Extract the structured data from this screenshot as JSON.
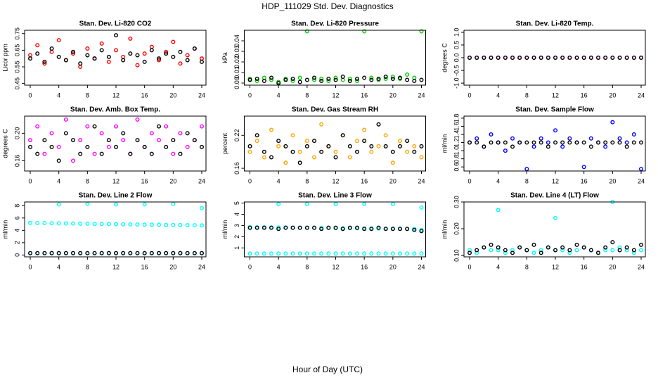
{
  "title": "HDP_111029  Std. Dev. Diagnostics",
  "xlabel": "Hour of Day (UTC)",
  "chart_data": [
    {
      "type": "scatter",
      "title": "Stan. Dev. Li-820 CO2",
      "ylabel": "Licor ppm",
      "x": [
        0,
        1,
        2,
        3,
        4,
        5,
        6,
        7,
        8,
        9,
        10,
        11,
        12,
        13,
        14,
        15,
        16,
        17,
        18,
        19,
        20,
        21,
        22,
        23,
        24
      ],
      "xlim": [
        -0.79,
        24.59
      ],
      "xticks": [
        0,
        4,
        8,
        12,
        16,
        20,
        24
      ],
      "ylim": [
        0.44,
        0.77
      ],
      "yticks": [
        0.45,
        0.55,
        0.65,
        0.75
      ],
      "series": [
        {
          "color": "#ff0000",
          "values": [
            0.62,
            0.68,
            0.57,
            0.64,
            0.71,
            0.59,
            0.63,
            0.55,
            0.66,
            0.6,
            0.69,
            0.58,
            0.65,
            0.61,
            0.72,
            0.56,
            0.63,
            0.67,
            0.59,
            0.64,
            0.7,
            0.57,
            0.62,
            0.66,
            0.6
          ]
        },
        {
          "color": "#000000",
          "values": [
            0.6,
            0.63,
            0.58,
            0.66,
            0.61,
            0.59,
            0.64,
            0.57,
            0.62,
            0.6,
            0.65,
            0.61,
            0.74,
            0.59,
            0.63,
            0.62,
            0.58,
            0.65,
            0.6,
            0.63,
            0.61,
            0.64,
            0.59,
            0.66,
            0.58
          ]
        }
      ]
    },
    {
      "type": "scatter",
      "title": "Stan. Dev. Li-820 Pressure",
      "ylabel": "kPa",
      "x": [
        0,
        1,
        2,
        3,
        4,
        5,
        6,
        7,
        8,
        9,
        10,
        11,
        12,
        13,
        14,
        15,
        16,
        17,
        18,
        19,
        20,
        21,
        22,
        23,
        24
      ],
      "xlim": [
        -0.79,
        24.59
      ],
      "xticks": [
        0,
        4,
        8,
        12,
        16,
        20,
        24
      ],
      "ylim": [
        -0.002,
        0.05
      ],
      "yticks": [
        {
          "value": 0,
          "label": "0.00"
        },
        0.01,
        0.02,
        0.03,
        0.04
      ],
      "series": [
        {
          "color": "#00cc00",
          "values": [
            0.004,
            0.002,
            0.005,
            0.003,
            0.001,
            0.004,
            0.002,
            0.005,
            0.049,
            0.003,
            0.004,
            0.002,
            0.005,
            0.003,
            0.004,
            0.002,
            0.049,
            0.005,
            0.003,
            0.004,
            0.006,
            0.004,
            0.008,
            0.005,
            0.049
          ]
        },
        {
          "color": "#000000",
          "values": [
            0.003,
            0.004,
            0.002,
            0.005,
            0.0,
            0.003,
            0.004,
            0.001,
            0.003,
            0.005,
            0.002,
            0.004,
            0.003,
            0.006,
            0.002,
            0.004,
            0.005,
            0.003,
            0.004,
            0.006,
            0.004,
            0.005,
            0.003,
            0.002,
            0.003
          ]
        }
      ]
    },
    {
      "type": "scatter",
      "title": "Stan. Dev. Li-820 Temp.",
      "ylabel": "degrees C",
      "x": [
        0,
        1,
        2,
        3,
        4,
        5,
        6,
        7,
        8,
        9,
        10,
        11,
        12,
        13,
        14,
        15,
        16,
        17,
        18,
        19,
        20,
        21,
        22,
        23,
        24
      ],
      "xlim": [
        -0.79,
        24.59
      ],
      "xticks": [
        0,
        4,
        8,
        12,
        16,
        20,
        24
      ],
      "ylim": [
        -1.08,
        1.08
      ],
      "yticks": [
        {
          "value": -1,
          "label": "-1.0"
        },
        -0.5,
        {
          "value": 0,
          "label": "0.0"
        },
        0.5,
        {
          "value": 1,
          "label": "1.0"
        }
      ],
      "series": [
        {
          "color": "#ff00ff",
          "values": [
            0,
            0,
            0,
            0,
            0,
            0,
            0,
            0,
            0,
            0,
            0,
            0,
            0,
            0,
            0,
            0,
            0,
            0,
            0,
            0,
            0,
            0,
            0,
            0,
            0
          ]
        },
        {
          "color": "#000000",
          "values": [
            0,
            0,
            0,
            0,
            0,
            0,
            0,
            0,
            0,
            0,
            0,
            0,
            0,
            0,
            0,
            0,
            0,
            0,
            0,
            0,
            0,
            0,
            0,
            0,
            0
          ]
        }
      ]
    },
    {
      "type": "scatter",
      "title": "Stan. Dev. Amb. Box Temp.",
      "ylabel": "degrees C",
      "x": [
        0,
        1,
        2,
        3,
        4,
        5,
        6,
        7,
        8,
        9,
        10,
        11,
        12,
        13,
        14,
        15,
        16,
        17,
        18,
        19,
        20,
        21,
        22,
        23,
        24
      ],
      "xlim": [
        -0.79,
        24.59
      ],
      "xticks": [
        0,
        4,
        8,
        12,
        16,
        20,
        24
      ],
      "ylim": [
        0.145,
        0.225
      ],
      "yticks": [
        0.16,
        {
          "value": 0.2,
          "label": "0.20"
        }
      ],
      "series": [
        {
          "color": "#ff00ff",
          "values": [
            0.19,
            0.21,
            0.17,
            0.2,
            0.18,
            0.22,
            0.16,
            0.19,
            0.21,
            0.17,
            0.2,
            0.18,
            0.21,
            0.19,
            0.17,
            0.22,
            0.18,
            0.2,
            0.19,
            0.21,
            0.17,
            0.2,
            0.18,
            0.19,
            0.21
          ]
        },
        {
          "color": "#000000",
          "values": [
            0.18,
            0.17,
            0.19,
            0.18,
            0.16,
            0.2,
            0.19,
            0.17,
            0.18,
            0.21,
            0.17,
            0.19,
            0.18,
            0.2,
            0.17,
            0.19,
            0.18,
            0.17,
            0.21,
            0.18,
            0.19,
            0.17,
            0.2,
            0.19,
            0.18
          ]
        }
      ]
    },
    {
      "type": "scatter",
      "title": "Stan. Dev. Gas Stream RH",
      "ylabel": "percent",
      "x": [
        0,
        1,
        2,
        3,
        4,
        5,
        6,
        7,
        8,
        9,
        10,
        11,
        12,
        13,
        14,
        15,
        16,
        17,
        18,
        19,
        20,
        21,
        22,
        23,
        24
      ],
      "xlim": [
        -0.79,
        24.59
      ],
      "xticks": [
        0,
        4,
        8,
        12,
        16,
        20,
        24
      ],
      "ylim": [
        0.155,
        0.255
      ],
      "yticks": [
        0.16,
        0.22
      ],
      "series": [
        {
          "color": "#ffa500",
          "values": [
            0.19,
            0.21,
            0.18,
            0.23,
            0.2,
            0.17,
            0.22,
            0.19,
            0.21,
            0.18,
            0.24,
            0.2,
            0.19,
            0.22,
            0.18,
            0.21,
            0.23,
            0.19,
            0.2,
            0.22,
            0.17,
            0.21,
            0.19,
            0.2,
            0.18
          ]
        },
        {
          "color": "#000000",
          "values": [
            0.2,
            0.22,
            0.19,
            0.18,
            0.21,
            0.2,
            0.19,
            0.17,
            0.2,
            0.21,
            0.19,
            0.2,
            0.18,
            0.22,
            0.2,
            0.19,
            0.21,
            0.2,
            0.24,
            0.2,
            0.19,
            0.2,
            0.21,
            0.19,
            0.2
          ]
        }
      ]
    },
    {
      "type": "scatter",
      "title": "Stan. Dev. Sample Flow",
      "ylabel": "ml/min",
      "x": [
        0,
        1,
        2,
        3,
        4,
        5,
        6,
        7,
        8,
        9,
        10,
        11,
        12,
        13,
        14,
        15,
        16,
        17,
        18,
        19,
        20,
        21,
        22,
        23,
        24
      ],
      "xlim": [
        -0.79,
        24.59
      ],
      "xticks": [
        0,
        4,
        8,
        12,
        16,
        20,
        24
      ],
      "ylim": [
        0.5,
        1.85
      ],
      "yticks": [
        0.6,
        0.8,
        {
          "value": 1,
          "label": "1.0"
        },
        1.2,
        1.4,
        1.6,
        1.8
      ],
      "series": [
        {
          "color": "#0000ff",
          "values": [
            1.2,
            1.3,
            1.1,
            1.4,
            1.2,
            1.0,
            1.3,
            1.2,
            0.55,
            1.1,
            1.3,
            1.2,
            1.5,
            1.1,
            1.3,
            1.2,
            0.6,
            1.3,
            1.2,
            1.1,
            1.7,
            1.3,
            1.2,
            1.4,
            0.55
          ]
        },
        {
          "color": "#000000",
          "values": [
            1.2,
            1.2,
            1.1,
            1.2,
            1.2,
            1.2,
            1.1,
            1.2,
            1.2,
            1.2,
            1.2,
            1.1,
            1.2,
            1.2,
            1.2,
            1.2,
            1.2,
            1.1,
            1.2,
            1.2,
            1.2,
            1.2,
            1.1,
            1.2,
            1.2
          ]
        }
      ]
    },
    {
      "type": "scatter",
      "title": "Stan. Dev. Line 2 Flow",
      "ylabel": "ml/min",
      "x": [
        0,
        1,
        2,
        3,
        4,
        5,
        6,
        7,
        8,
        9,
        10,
        11,
        12,
        13,
        14,
        15,
        16,
        17,
        18,
        19,
        20,
        21,
        22,
        23,
        24
      ],
      "xlim": [
        -0.79,
        24.59
      ],
      "xticks": [
        0,
        4,
        8,
        12,
        16,
        20,
        24
      ],
      "ylim": [
        -0.3,
        8.6
      ],
      "yticks": [
        0,
        2,
        4,
        6,
        8
      ],
      "series": [
        {
          "color": "#00ffff",
          "values": [
            5.2,
            5.18,
            5.17,
            5.15,
            5.13,
            5.12,
            5.1,
            5.08,
            5.07,
            5.05,
            5.03,
            5.02,
            5.0,
            4.98,
            4.97,
            4.95,
            4.93,
            4.92,
            4.9,
            4.88,
            4.87,
            4.85,
            4.83,
            4.82,
            4.8
          ]
        },
        {
          "color": "#00ffff",
          "values": [
            0.3,
            0.3,
            0.3,
            0.3,
            0.3,
            0.3,
            0.3,
            0.3,
            0.3,
            0.3,
            0.3,
            0.3,
            0.3,
            0.3,
            0.3,
            0.3,
            0.3,
            0.3,
            0.3,
            0.3,
            0.3,
            0.3,
            0.3,
            0.3,
            0.3
          ]
        },
        {
          "color": "#00ffff",
          "values": [
            null,
            null,
            null,
            null,
            8.2,
            null,
            null,
            null,
            8.3,
            null,
            null,
            null,
            8.2,
            null,
            null,
            null,
            8.2,
            null,
            null,
            null,
            8.3,
            null,
            null,
            null,
            7.6
          ]
        },
        {
          "color": "#000000",
          "values": [
            0.3,
            0.3,
            0.3,
            0.3,
            0.3,
            0.3,
            0.3,
            0.3,
            0.3,
            0.3,
            0.3,
            0.3,
            0.3,
            0.3,
            0.3,
            0.3,
            0.3,
            0.3,
            0.3,
            0.3,
            0.3,
            0.3,
            0.3,
            0.3,
            0.3
          ]
        }
      ]
    },
    {
      "type": "scatter",
      "title": "Stan. Dev. Line 3 Flow",
      "ylabel": "ml/min",
      "x": [
        0,
        1,
        2,
        3,
        4,
        5,
        6,
        7,
        8,
        9,
        10,
        11,
        12,
        13,
        14,
        15,
        16,
        17,
        18,
        19,
        20,
        21,
        22,
        23,
        24
      ],
      "xlim": [
        -0.79,
        24.59
      ],
      "xticks": [
        0,
        4,
        8,
        12,
        16,
        20,
        24
      ],
      "ylim": [
        0.2,
        5.1
      ],
      "yticks": [
        1,
        2,
        3,
        4,
        5
      ],
      "series": [
        {
          "color": "#00ffff",
          "values": [
            2.85,
            2.84,
            2.84,
            2.83,
            2.82,
            2.82,
            2.81,
            2.8,
            2.8,
            2.79,
            2.78,
            2.78,
            2.77,
            2.76,
            2.76,
            2.75,
            2.74,
            2.74,
            2.73,
            2.72,
            2.72,
            2.71,
            2.7,
            2.7,
            2.6
          ]
        },
        {
          "color": "#00ffff",
          "values": [
            0.5,
            0.5,
            0.5,
            0.5,
            0.5,
            0.5,
            0.5,
            0.5,
            0.5,
            0.5,
            0.5,
            0.5,
            0.5,
            0.5,
            0.5,
            0.5,
            0.5,
            0.5,
            0.5,
            0.5,
            0.5,
            0.5,
            0.5,
            0.5,
            0.5
          ]
        },
        {
          "color": "#00ffff",
          "values": [
            null,
            null,
            null,
            null,
            4.9,
            null,
            null,
            null,
            4.9,
            null,
            null,
            null,
            4.9,
            null,
            null,
            null,
            4.9,
            null,
            null,
            null,
            4.9,
            null,
            null,
            null,
            4.6
          ]
        },
        {
          "color": "#000000",
          "values": [
            2.8,
            2.8,
            2.8,
            2.8,
            2.7,
            2.8,
            2.8,
            2.8,
            2.8,
            2.8,
            2.7,
            2.8,
            2.8,
            2.7,
            2.8,
            2.8,
            2.7,
            2.7,
            2.8,
            2.7,
            2.7,
            2.7,
            2.7,
            2.6,
            2.5
          ]
        }
      ]
    },
    {
      "type": "scatter",
      "title": "Stan. Dev. Line 4 (LT) Flow",
      "ylabel": "ml/min",
      "x": [
        0,
        1,
        2,
        3,
        4,
        5,
        6,
        7,
        8,
        9,
        10,
        11,
        12,
        13,
        14,
        15,
        16,
        17,
        18,
        19,
        20,
        21,
        22,
        23,
        24
      ],
      "xlim": [
        -0.79,
        24.59
      ],
      "xticks": [
        0,
        4,
        8,
        12,
        16,
        20,
        24
      ],
      "ylim": [
        0.095,
        0.3
      ],
      "yticks": [
        {
          "value": 0.1,
          "label": "0.10"
        },
        {
          "value": 0.2,
          "label": "0.20"
        },
        {
          "value": 0.3,
          "label": "0.30"
        }
      ],
      "series": [
        {
          "color": "#00ffff",
          "values": [
            0.12,
            0.11,
            0.13,
            0.12,
            0.12,
            0.11,
            0.12,
            0.13,
            0.12,
            0.11,
            0.12,
            0.13,
            0.12,
            0.12,
            0.11,
            0.12,
            0.13,
            0.12,
            0.11,
            0.12,
            0.12,
            0.13,
            0.12,
            0.11,
            0.12
          ]
        },
        {
          "color": "#00ffff",
          "values": [
            null,
            null,
            null,
            null,
            0.27,
            null,
            null,
            null,
            null,
            null,
            null,
            null,
            0.24,
            null,
            null,
            null,
            null,
            null,
            null,
            null,
            0.3,
            null,
            null,
            null,
            null
          ]
        },
        {
          "color": "#000000",
          "values": [
            0.11,
            0.12,
            0.13,
            0.14,
            0.13,
            0.12,
            0.11,
            0.13,
            0.12,
            0.14,
            0.11,
            0.13,
            0.12,
            0.13,
            0.12,
            0.14,
            0.13,
            0.12,
            0.11,
            0.13,
            0.15,
            0.12,
            0.13,
            0.12,
            0.14
          ]
        }
      ]
    }
  ]
}
